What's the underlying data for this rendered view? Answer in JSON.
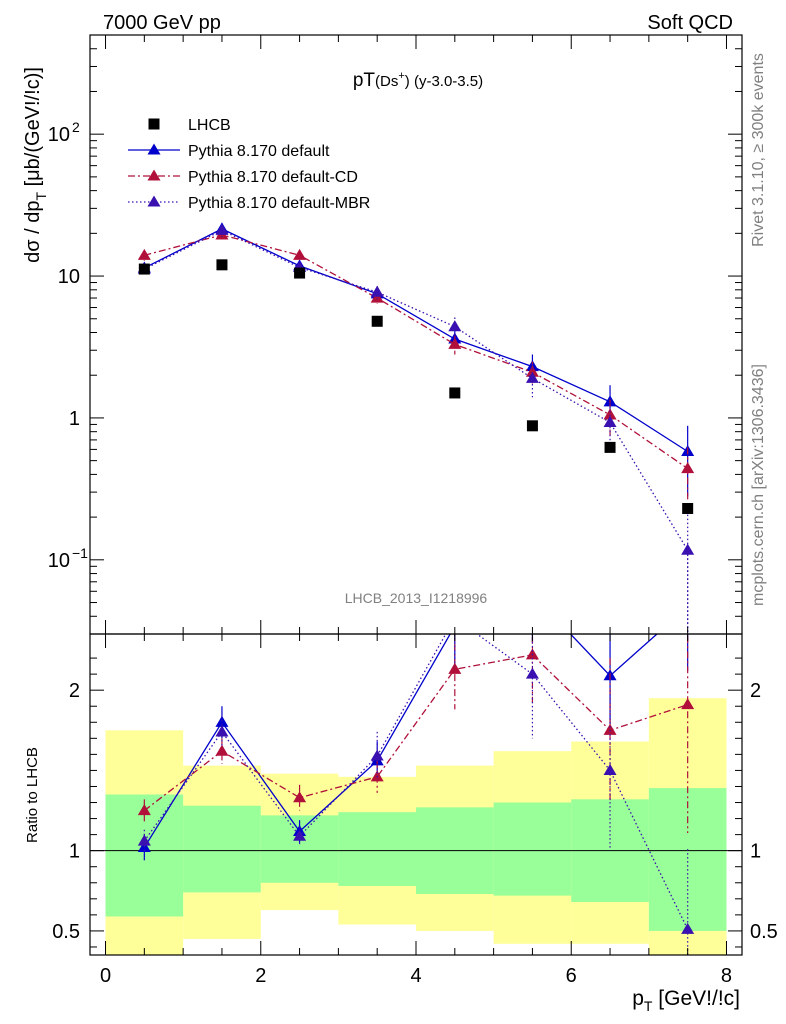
{
  "chart_data": {
    "type": "scatter",
    "header_left": "7000 GeV pp",
    "header_right": "Soft QCD",
    "title_main": "pT",
    "title_sub": "(Ds",
    "title_sup": "+",
    "title_rest": ") (y-3.0-3.5)",
    "side_label_top": "Rivet 3.1.10, ≥ 300k events",
    "side_label_bottom": "mcplots.cern.ch [arXiv:1306.3436]",
    "analysis_label": "LHCB_2013_I1218996",
    "ylabel_main": "dσ / dp",
    "ylabel_sub": "T",
    "ylabel_rest": " [μb/(GeV!/!c)]",
    "ylabel_ratio": "Ratio to LHCB",
    "xlabel_main": "p",
    "xlabel_sub": "T",
    "xlabel_rest": " [GeV!/!c]",
    "x_ticks": [
      "0",
      "2",
      "4",
      "6",
      "8"
    ],
    "y_ticks_main": [
      {
        "label": "10",
        "exp": "2",
        "value": 100
      },
      {
        "label": "10",
        "exp": "",
        "value": 10
      },
      {
        "label": "1",
        "exp": "",
        "value": 1
      },
      {
        "label": "10",
        "exp": "−1",
        "value": 0.1
      }
    ],
    "y_ticks_ratio": [
      {
        "label": "0.5",
        "value": 0.5
      },
      {
        "label": "1",
        "value": 1
      },
      {
        "label": "2",
        "value": 2
      }
    ],
    "xlim": [
      -0.2,
      8.2
    ],
    "ylim_main": [
      0.03,
      500
    ],
    "ylim_ratio": [
      0.35,
      2.35
    ],
    "x": [
      0.5,
      1.5,
      2.5,
      3.5,
      4.5,
      5.5,
      6.5,
      7.5
    ],
    "bin_edges": [
      0,
      1,
      2,
      3,
      4,
      5,
      6,
      7,
      8
    ],
    "legend_position": "top-left",
    "series": [
      {
        "name": "LHCB",
        "style": "data",
        "color": "#000000",
        "marker": "square",
        "values": [
          11.2,
          12.0,
          10.5,
          4.8,
          1.5,
          0.88,
          0.62,
          0.23
        ]
      },
      {
        "name": "Pythia 8.170 default",
        "style": "solid",
        "color": "#0000cc",
        "marker": "triangle",
        "values": [
          11.4,
          21.5,
          11.8,
          7.5,
          3.6,
          2.3,
          1.3,
          0.58
        ],
        "err": [
          0.9,
          2.2,
          0.9,
          0.6,
          0.5,
          0.5,
          0.4,
          0.3
        ]
      },
      {
        "name": "Pythia 8.170 default-CD",
        "style": "dashdot",
        "color": "#b0103a",
        "marker": "triangle",
        "values": [
          14.0,
          19.5,
          14.0,
          7.0,
          3.3,
          2.1,
          1.05,
          0.44
        ],
        "err": [
          1.2,
          1.5,
          1.0,
          0.6,
          0.5,
          0.4,
          0.3,
          0.18
        ]
      },
      {
        "name": "Pythia 8.170 default-MBR",
        "style": "dotted",
        "color": "#3a10b0",
        "marker": "triangle",
        "values": [
          11.2,
          21.0,
          11.5,
          7.7,
          4.4,
          1.9,
          0.93,
          0.117
        ],
        "err": [
          0.9,
          2.2,
          0.9,
          0.8,
          0.7,
          0.5,
          0.35,
          0.12
        ]
      }
    ],
    "ratio_series": [
      {
        "name": "Pythia 8.170 default",
        "values": [
          1.02,
          1.8,
          1.12,
          1.56,
          2.4,
          2.6,
          2.09,
          2.52
        ],
        "err": [
          0.08,
          0.1,
          0.07,
          0.12,
          0.25,
          0.3,
          0.3,
          0.4
        ]
      },
      {
        "name": "Pythia 8.170 default-CD",
        "values": [
          1.25,
          1.62,
          1.33,
          1.46,
          2.13,
          2.22,
          1.75,
          1.91
        ],
        "err": [
          0.07,
          0.08,
          0.08,
          0.1,
          0.25,
          0.3,
          0.45,
          0.8
        ]
      },
      {
        "name": "Pythia 8.170 default-MBR",
        "values": [
          1.06,
          1.74,
          1.09,
          1.59,
          2.45,
          2.1,
          1.5,
          0.51
        ],
        "err": [
          0.07,
          0.1,
          0.06,
          0.15,
          0.3,
          0.4,
          0.5,
          0.5
        ]
      }
    ],
    "band_yellow": [
      [
        0.35,
        1.75
      ],
      [
        0.45,
        1.53
      ],
      [
        0.63,
        1.48
      ],
      [
        0.54,
        1.46
      ],
      [
        0.5,
        1.53
      ],
      [
        0.42,
        1.62
      ],
      [
        0.42,
        1.68
      ],
      [
        0.35,
        1.95
      ]
    ],
    "band_green": [
      [
        0.59,
        1.35
      ],
      [
        0.74,
        1.28
      ],
      [
        0.8,
        1.22
      ],
      [
        0.78,
        1.24
      ],
      [
        0.73,
        1.27
      ],
      [
        0.72,
        1.3
      ],
      [
        0.68,
        1.32
      ],
      [
        0.5,
        1.39
      ]
    ]
  }
}
